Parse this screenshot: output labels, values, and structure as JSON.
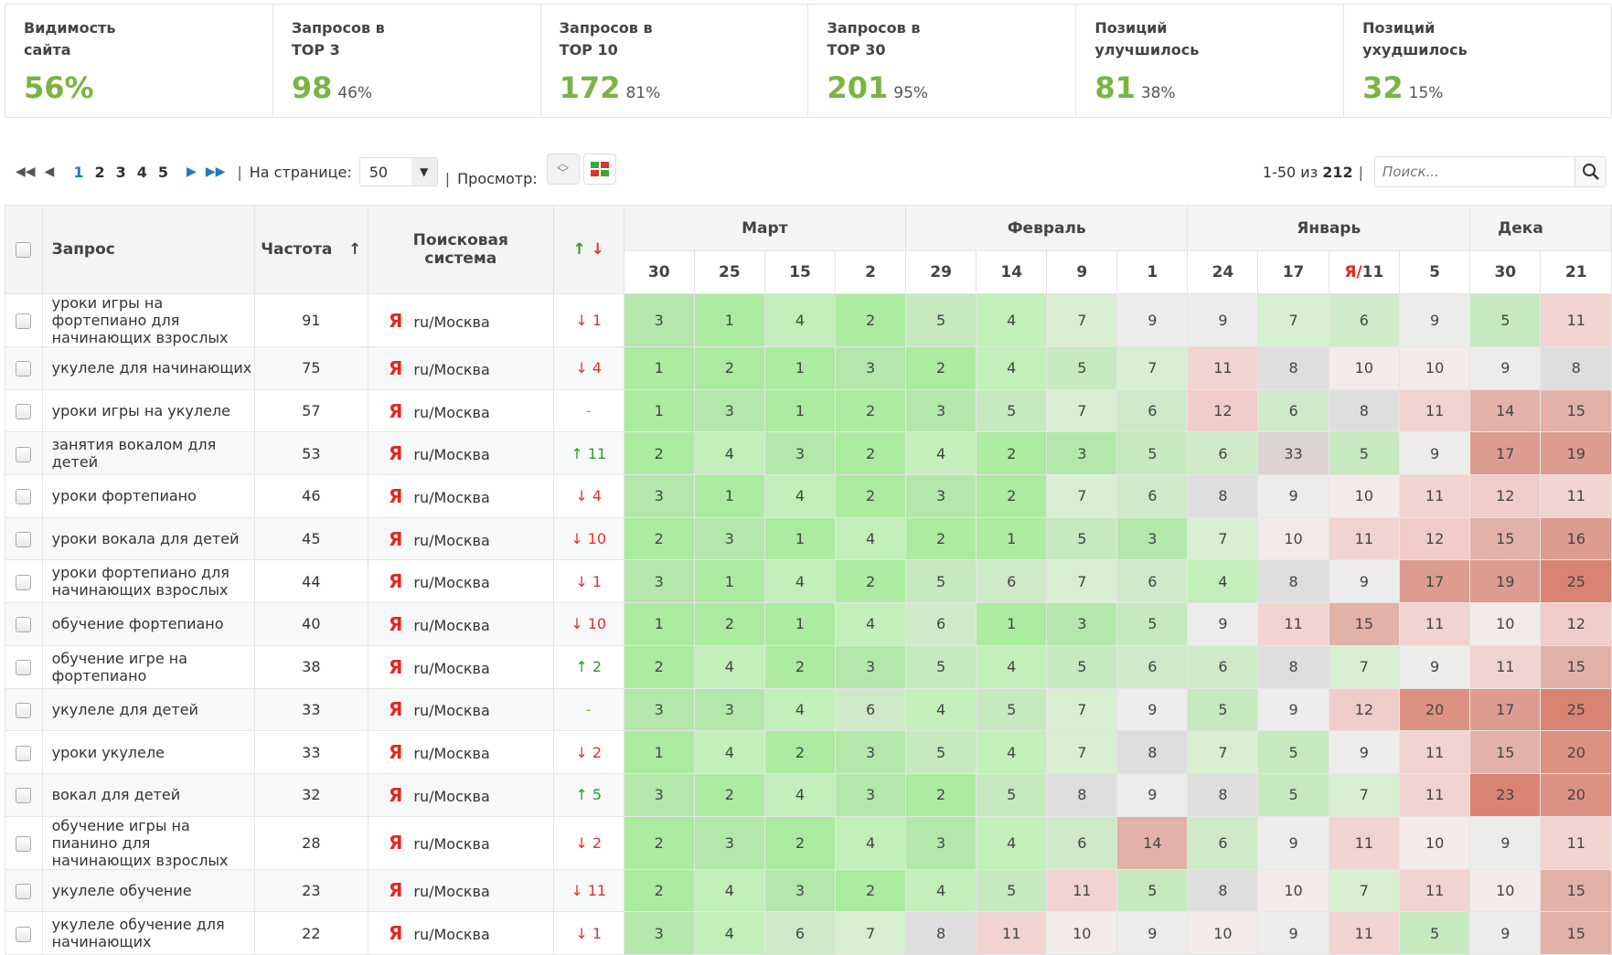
{
  "stats": [
    {
      "label": "Видимость\nсайта",
      "value": "56%",
      "percent": ""
    },
    {
      "label": "Запросов в\nTOP 3",
      "value": "98",
      "percent": "46%"
    },
    {
      "label": "Запросов в\nTOP 10",
      "value": "172",
      "percent": "81%"
    },
    {
      "label": "Запросов в\nTOP 30",
      "value": "201",
      "percent": "95%"
    },
    {
      "label": "Позиций\nулучшилось",
      "value": "81",
      "percent": "38%"
    },
    {
      "label": "Позиций\nухудшилось",
      "value": "32",
      "percent": "15%"
    }
  ],
  "toolbar": {
    "pages": [
      "1",
      "2",
      "3",
      "4",
      "5"
    ],
    "current_page": "1",
    "per_page_label": "На странице:",
    "per_page": "50",
    "view_label": "Просмотр:",
    "range": "1-50 из",
    "total": "212",
    "search_placeholder": "Поиск..."
  },
  "table": {
    "headers": {
      "query": "Запрос",
      "frequency": "Частота",
      "frequency_sort": "↑",
      "engine": "Поисковая система",
      "change": "↑",
      "change2": "↓"
    },
    "months": [
      {
        "name": "Март",
        "span": 4
      },
      {
        "name": "Февраль",
        "span": 4
      },
      {
        "name": "Январь",
        "span": 4
      },
      {
        "name": "Дека",
        "span": 2
      }
    ],
    "days": [
      "30",
      "25",
      "15",
      "2",
      "29",
      "14",
      "9",
      "1",
      "24",
      "17",
      "Я/11",
      "5",
      "30",
      "21"
    ],
    "engine_icon": "Я",
    "rows": [
      {
        "query": "уроки игры на фортепиано для начинающих взрослых",
        "freq": "91",
        "engine": "ru/Москва",
        "change": "↓ 1",
        "dir": "dn",
        "pos": [
          3,
          1,
          4,
          2,
          5,
          4,
          7,
          9,
          9,
          7,
          6,
          9,
          5,
          11
        ]
      },
      {
        "query": "укулеле для начинающих",
        "freq": "75",
        "engine": "ru/Москва",
        "change": "↓ 4",
        "dir": "dn",
        "pos": [
          1,
          2,
          1,
          3,
          2,
          4,
          5,
          7,
          11,
          8,
          10,
          10,
          9,
          8
        ]
      },
      {
        "query": "уроки игры на укулеле",
        "freq": "57",
        "engine": "ru/Москва",
        "change": "-",
        "dir": "nc",
        "pos": [
          1,
          3,
          1,
          2,
          3,
          5,
          7,
          6,
          12,
          6,
          8,
          11,
          14,
          15
        ]
      },
      {
        "query": "занятия вокалом для детей",
        "freq": "53",
        "engine": "ru/Москва",
        "change": "↑ 11",
        "dir": "up",
        "pos": [
          2,
          4,
          3,
          2,
          4,
          2,
          3,
          5,
          6,
          33,
          5,
          9,
          17,
          19
        ]
      },
      {
        "query": "уроки фортепиано",
        "freq": "46",
        "engine": "ru/Москва",
        "change": "↓ 4",
        "dir": "dn",
        "pos": [
          3,
          1,
          4,
          2,
          3,
          2,
          7,
          6,
          8,
          9,
          10,
          11,
          12,
          11
        ]
      },
      {
        "query": "уроки вокала для детей",
        "freq": "45",
        "engine": "ru/Москва",
        "change": "↓ 10",
        "dir": "dn",
        "pos": [
          2,
          3,
          1,
          4,
          2,
          1,
          5,
          3,
          7,
          10,
          11,
          12,
          15,
          16
        ]
      },
      {
        "query": "уроки фортепиано для начинающих взрослых",
        "freq": "44",
        "engine": "ru/Москва",
        "change": "↓ 1",
        "dir": "dn",
        "pos": [
          3,
          1,
          4,
          2,
          5,
          6,
          7,
          6,
          4,
          8,
          9,
          17,
          19,
          25
        ]
      },
      {
        "query": "обучение фортепиано",
        "freq": "40",
        "engine": "ru/Москва",
        "change": "↓ 10",
        "dir": "dn",
        "pos": [
          1,
          2,
          1,
          4,
          6,
          1,
          3,
          5,
          9,
          11,
          15,
          11,
          10,
          12
        ]
      },
      {
        "query": "обучение игре на фортепиано",
        "freq": "38",
        "engine": "ru/Москва",
        "change": "↑ 2",
        "dir": "up",
        "pos": [
          2,
          4,
          2,
          3,
          5,
          4,
          5,
          6,
          6,
          8,
          7,
          9,
          11,
          15
        ]
      },
      {
        "query": "укулеле для детей",
        "freq": "33",
        "engine": "ru/Москва",
        "change": "-",
        "dir": "nc",
        "pos": [
          3,
          3,
          4,
          6,
          4,
          5,
          7,
          9,
          5,
          9,
          12,
          20,
          17,
          25
        ]
      },
      {
        "query": "уроки укулеле",
        "freq": "33",
        "engine": "ru/Москва",
        "change": "↓ 2",
        "dir": "dn",
        "pos": [
          1,
          4,
          2,
          3,
          5,
          4,
          7,
          8,
          7,
          5,
          9,
          11,
          15,
          20
        ]
      },
      {
        "query": "вокал для детей",
        "freq": "32",
        "engine": "ru/Москва",
        "change": "↑ 5",
        "dir": "up",
        "pos": [
          3,
          2,
          4,
          3,
          2,
          5,
          8,
          9,
          8,
          5,
          7,
          11,
          23,
          20
        ]
      },
      {
        "query": "обучение игры на пианино для начинающих взрослых",
        "freq": "28",
        "engine": "ru/Москва",
        "change": "↓ 2",
        "dir": "dn",
        "pos": [
          2,
          3,
          2,
          4,
          3,
          4,
          6,
          14,
          6,
          9,
          11,
          10,
          9,
          11
        ]
      },
      {
        "query": "укулеле обучение",
        "freq": "23",
        "engine": "ru/Москва",
        "change": "↓ 11",
        "dir": "dn",
        "pos": [
          2,
          4,
          3,
          2,
          4,
          5,
          11,
          5,
          8,
          10,
          7,
          11,
          10,
          15
        ]
      },
      {
        "query": "укулеле обучение для начинающих",
        "freq": "22",
        "engine": "ru/Москва",
        "change": "↓ 1",
        "dir": "dn",
        "pos": [
          3,
          4,
          6,
          7,
          8,
          11,
          10,
          9,
          10,
          9,
          11,
          5,
          9,
          15
        ]
      }
    ]
  },
  "colors": {
    "accent": "#7cb342",
    "link": "#1e7bc5",
    "up": "#2e9b2e",
    "down": "#e03030"
  }
}
